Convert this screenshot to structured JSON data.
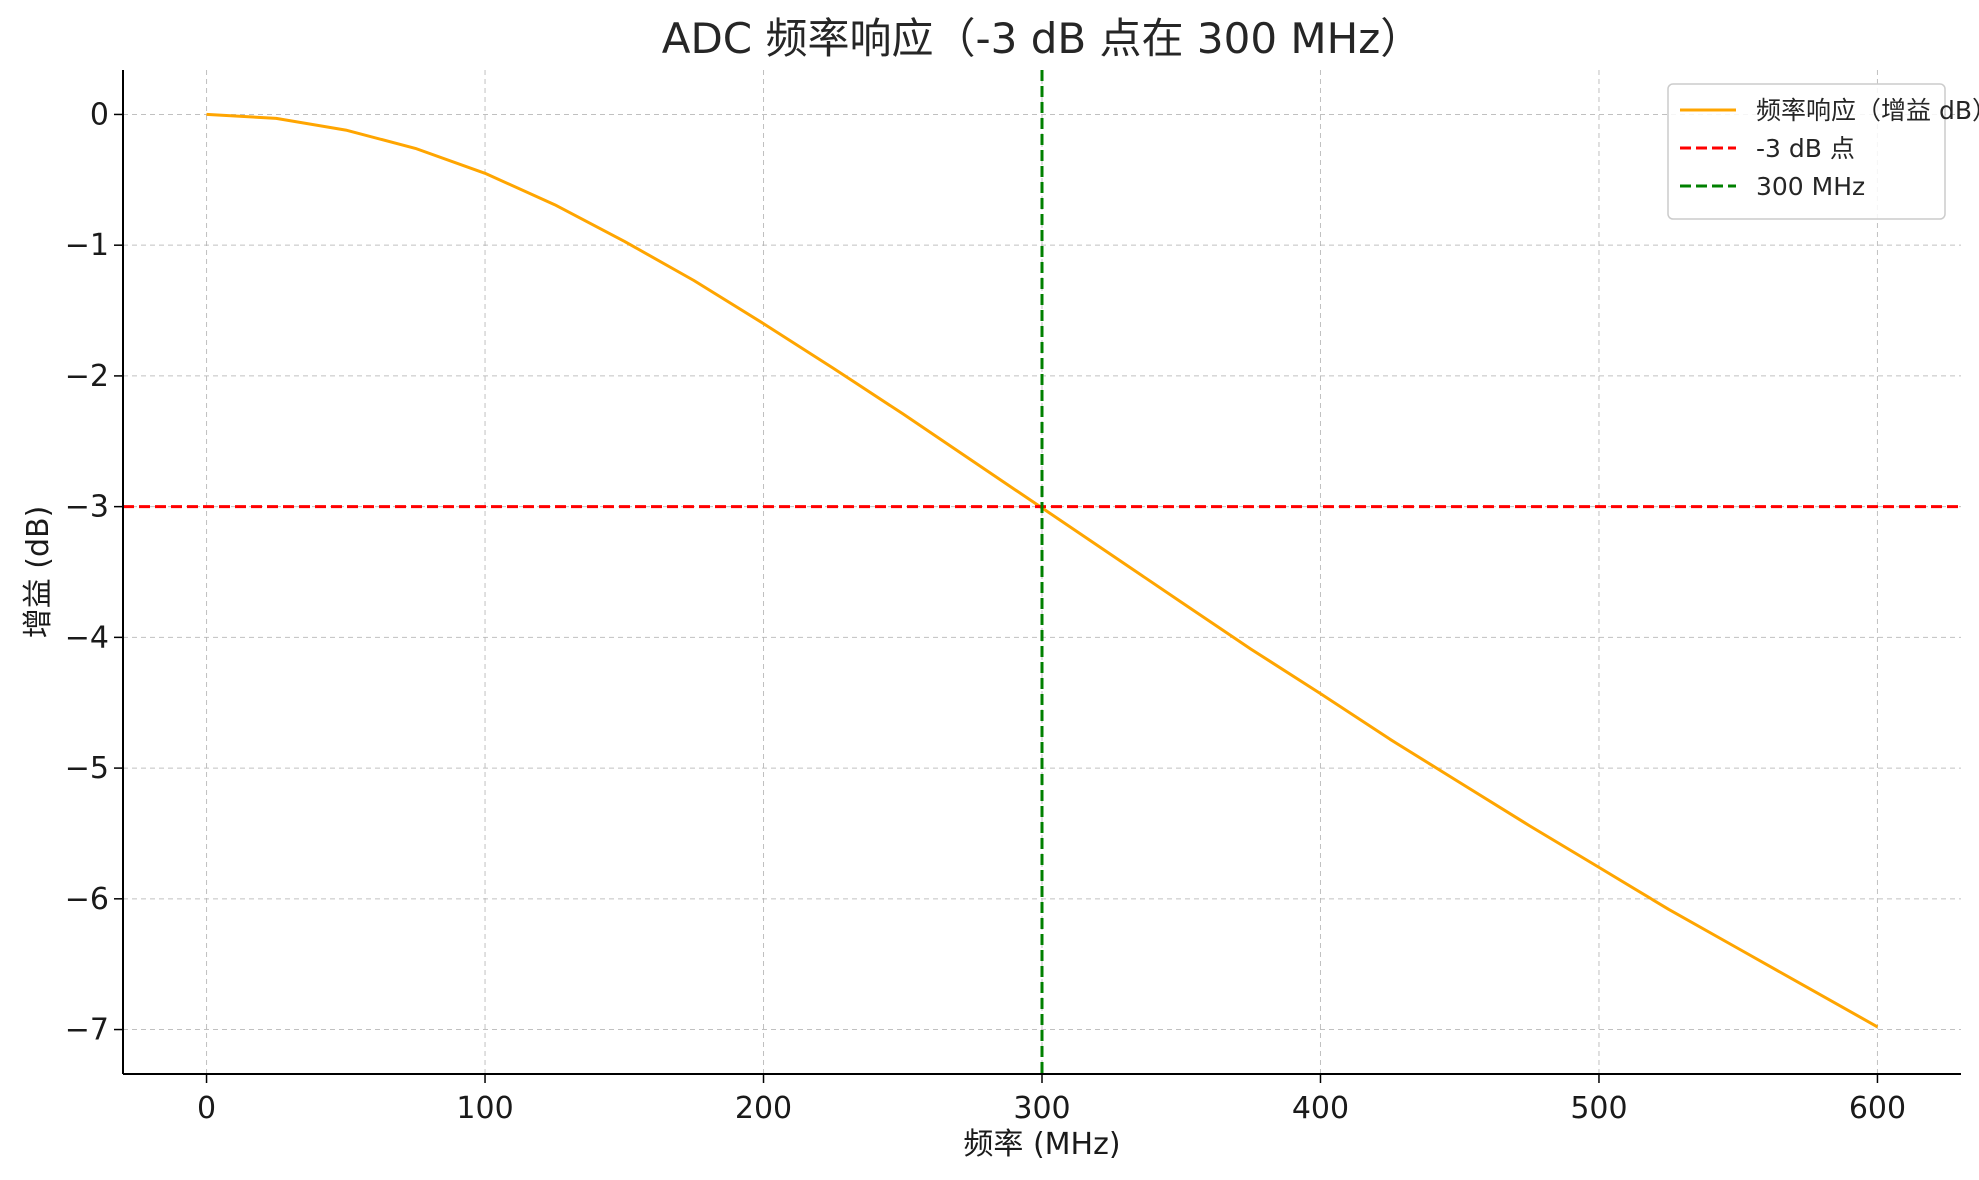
{
  "chart_data": {
    "type": "line",
    "title": "ADC 频率响应（-3 dB 点在 300 MHz）",
    "xlabel": "频率 (MHz)",
    "ylabel": "增益 (dB)",
    "xlim": [
      -30,
      630
    ],
    "ylim": [
      -7.34,
      0.34
    ],
    "x_ticks": [
      0,
      100,
      200,
      300,
      400,
      500,
      600
    ],
    "x_tick_labels": [
      "0",
      "100",
      "200",
      "300",
      "400",
      "500",
      "600"
    ],
    "y_ticks": [
      0,
      -1,
      -2,
      -3,
      -4,
      -5,
      -6,
      -7
    ],
    "y_tick_labels": [
      "0",
      "−1",
      "−2",
      "−3",
      "−4",
      "−5",
      "−6",
      "−7"
    ],
    "grid": true,
    "legend_position": "top-right",
    "series": [
      {
        "name": "频率响应（增益 dB）",
        "kind": "line",
        "color": "#FFA500",
        "style": "solid",
        "x": [
          0,
          25,
          50,
          75,
          100,
          125,
          150,
          175,
          200,
          225,
          250,
          275,
          300,
          325,
          350,
          375,
          400,
          425,
          450,
          475,
          500,
          525,
          550,
          575,
          600
        ],
        "y": [
          0,
          -0.03,
          -0.12,
          -0.26,
          -0.45,
          -0.69,
          -0.97,
          -1.27,
          -1.6,
          -1.94,
          -2.29,
          -2.65,
          -3.01,
          -3.37,
          -3.73,
          -4.09,
          -4.43,
          -4.78,
          -5.11,
          -5.44,
          -5.76,
          -6.08,
          -6.38,
          -6.68,
          -6.98
        ]
      },
      {
        "name": "-3 dB 点",
        "kind": "hline",
        "color": "#FF0000",
        "style": "dashed",
        "y": -3
      },
      {
        "name": "300 MHz",
        "kind": "vline",
        "color": "#008000",
        "style": "dashed",
        "x": 300
      }
    ]
  }
}
